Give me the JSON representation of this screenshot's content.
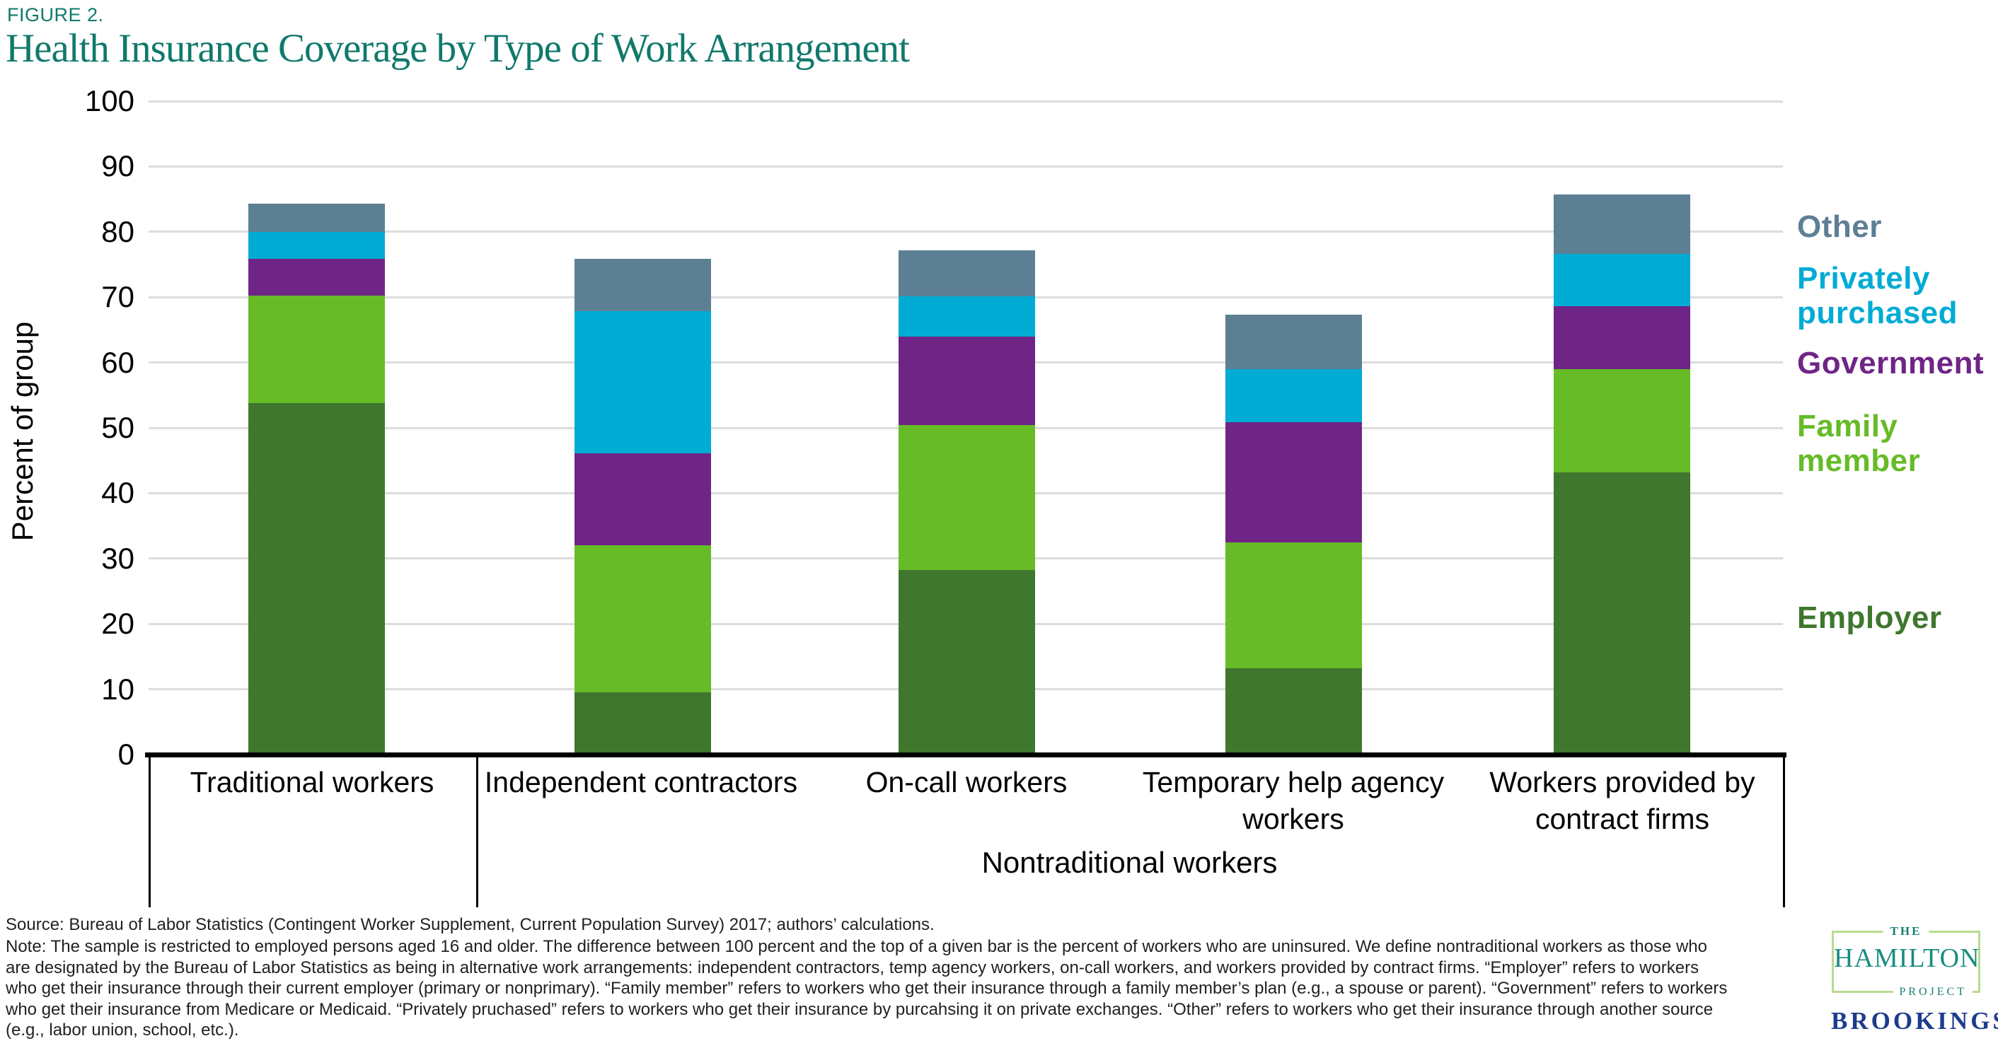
{
  "figure_label": "FIGURE 2.",
  "title": "Health Insurance Coverage by Type of Work Arrangement",
  "colors": {
    "title_teal": "#10796C",
    "employer": "#3E772D",
    "family_member": "#66BB27",
    "government": "#6F2586",
    "privately_purchased": "#00ABD4",
    "other": "#5C7F94",
    "gridline": "#DCDCDC",
    "axis": "#000000",
    "note_text": "#231F20",
    "logo_teal": "#1A8C80",
    "logo_green": "#B8DB90",
    "brookings_navy": "#1E3C8C"
  },
  "chart_data": {
    "type": "bar",
    "stacked": true,
    "title": "Health Insurance Coverage by Type of Work Arrangement",
    "xlabel": "",
    "ylabel": "Percent of group",
    "ylim": [
      0,
      100
    ],
    "ytick_step": 10,
    "grid": "horizontal",
    "legend_position": "right",
    "categories": [
      "Traditional workers",
      "Independent contractors",
      "On-call workers",
      "Temporary help agency workers",
      "Workers provided by contract firms"
    ],
    "series": [
      {
        "name": "Employer",
        "color": "#3E772D",
        "values": [
          53.8,
          9.5,
          28.2,
          13.2,
          43.2
        ]
      },
      {
        "name": "Family member",
        "color": "#66BB27",
        "values": [
          16.4,
          22.5,
          22.2,
          19.3,
          15.8
        ]
      },
      {
        "name": "Government",
        "color": "#6F2586",
        "values": [
          5.7,
          14.1,
          13.6,
          18.4,
          9.6
        ]
      },
      {
        "name": "Privately purchased",
        "color": "#00ABD4",
        "values": [
          4.1,
          21.8,
          6.1,
          8.1,
          8.0
        ]
      },
      {
        "name": "Other",
        "color": "#5C7F94",
        "values": [
          4.3,
          8.0,
          7.1,
          8.3,
          9.1
        ]
      }
    ],
    "bar_totals": [
      84.3,
      75.9,
      77.2,
      67.3,
      85.7
    ],
    "category_groups": [
      {
        "label": "",
        "span": [
          0,
          0
        ]
      },
      {
        "label": "Nontraditional workers",
        "span": [
          1,
          4
        ]
      }
    ]
  },
  "legend": {
    "items": [
      {
        "label": "Other",
        "color": "#5C7F94"
      },
      {
        "label": "Privately purchased",
        "color": "#00ABD4"
      },
      {
        "label": "Government",
        "color": "#6F2586"
      },
      {
        "label": "Family member",
        "color": "#66BB27"
      },
      {
        "label": "Employer",
        "color": "#3E772D"
      }
    ]
  },
  "footer": {
    "source": "Source: Bureau of Labor Statistics (Contingent Worker Supplement, Current Population Survey) 2017; authors’ calculations.",
    "note_lines": [
      "Note: The sample is restricted to employed persons aged 16 and older. The difference between 100 percent and the top of a given bar is the percent of workers who are uninsured. We define nontraditional workers as those who",
      "are designated by the Bureau of Labor Statistics as being in alternative work arrangements: independent contractors, temp agency workers, on-call workers, and workers provided by contract firms. “Employer” refers to workers",
      "who get their insurance through their current employer (primary or nonprimary). “Family member” refers to workers who get their insurance through a family member’s plan (e.g., a spouse or parent). “Government” refers to workers",
      "who get their insurance from Medicare or Medicaid. “Privately pruchased” refers to workers who get their insurance by purcahsing it on private exchanges. “Other” refers to workers who get their insurance through another source",
      "(e.g., labor union, school, etc.)."
    ]
  },
  "logo": {
    "the": "THE",
    "hamilton": "HAMILTON",
    "project": "PROJECT",
    "brookings": "BROOKINGS"
  }
}
